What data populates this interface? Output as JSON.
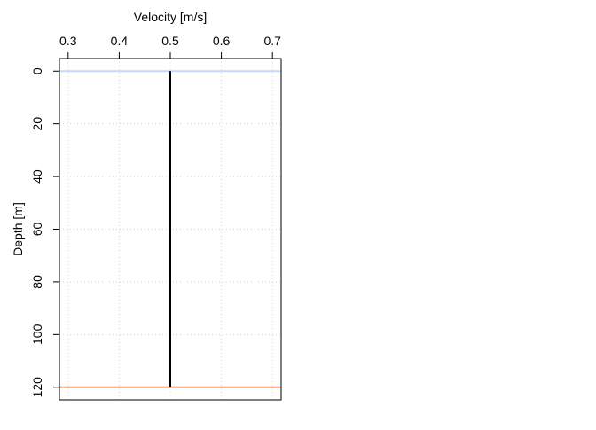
{
  "chart_data": {
    "type": "line",
    "title": "",
    "xlabel": "Velocity [m/s]",
    "ylabel": "Depth [m]",
    "x_axis_position": "top",
    "y_axis_inverted": true,
    "xlim": [
      0.283,
      0.717
    ],
    "ylim": [
      124.8,
      -4.8
    ],
    "x_ticks": [
      0.3,
      0.4,
      0.5,
      0.6,
      0.7
    ],
    "x_tick_labels": [
      "0.3",
      "0.4",
      "0.5",
      "0.6",
      "0.7"
    ],
    "y_ticks": [
      0,
      20,
      40,
      60,
      80,
      100,
      120
    ],
    "y_tick_labels": [
      "0",
      "20",
      "40",
      "60",
      "80",
      "100",
      "120"
    ],
    "grid": true,
    "series": [
      {
        "color": "#000000",
        "x": [
          0.5,
          0.5
        ],
        "y": [
          0,
          120
        ]
      }
    ],
    "horizontal_lines": [
      {
        "y": 0,
        "color": "#c6d6ff"
      },
      {
        "y": 120,
        "color": "#f4a471"
      }
    ]
  }
}
